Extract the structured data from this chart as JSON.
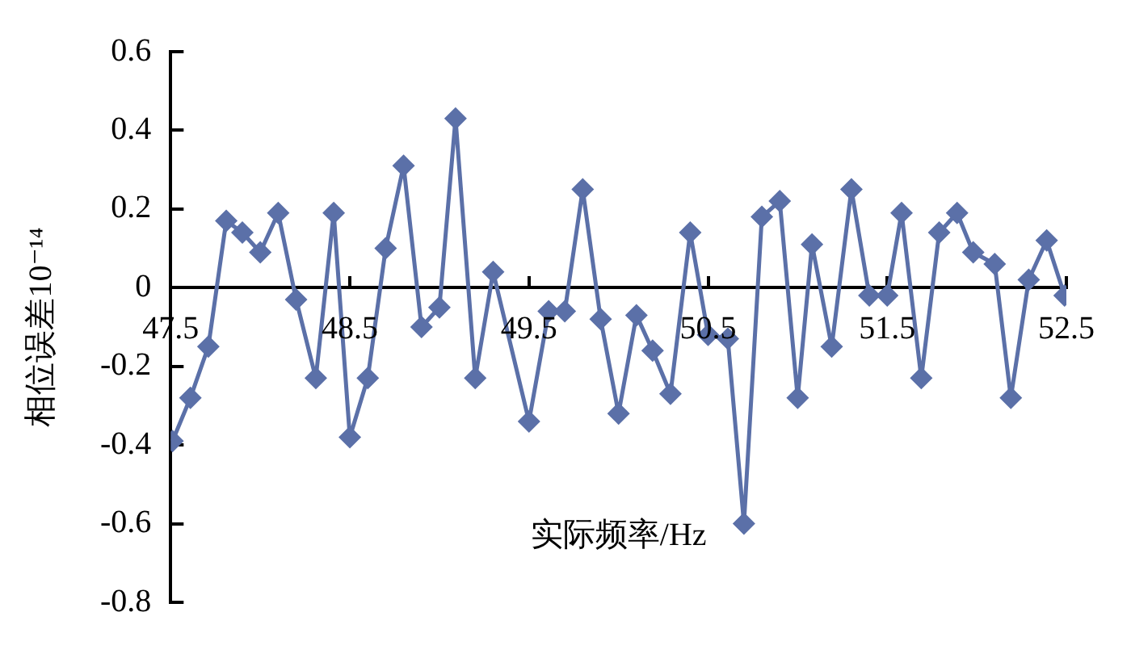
{
  "chart_data": {
    "type": "line",
    "xlabel": "实际频率/Hz",
    "ylabel": "相位误差10⁻¹⁴",
    "x": [
      47.51,
      47.61,
      47.71,
      47.81,
      47.9,
      48.0,
      48.1,
      48.2,
      48.31,
      48.41,
      48.5,
      48.6,
      48.7,
      48.8,
      48.9,
      49.0,
      49.09,
      49.2,
      49.3,
      49.5,
      49.61,
      49.7,
      49.8,
      49.9,
      50.0,
      50.1,
      50.19,
      50.29,
      50.4,
      50.5,
      50.61,
      50.7,
      50.8,
      50.9,
      51.0,
      51.08,
      51.19,
      51.3,
      51.4,
      51.5,
      51.58,
      51.69,
      51.79,
      51.89,
      51.98,
      52.1,
      52.19,
      52.29,
      52.39,
      52.49
    ],
    "series": [
      {
        "color": "#5b70a8",
        "values": [
          -0.39,
          -0.28,
          -0.15,
          0.17,
          0.14,
          0.09,
          0.19,
          -0.03,
          -0.23,
          0.19,
          -0.38,
          -0.23,
          0.1,
          0.31,
          -0.1,
          -0.05,
          0.43,
          -0.23,
          0.04,
          -0.34,
          -0.06,
          -0.06,
          0.25,
          -0.08,
          -0.32,
          -0.07,
          -0.16,
          -0.27,
          0.14,
          -0.12,
          -0.13,
          -0.6,
          0.18,
          0.22,
          -0.28,
          0.11,
          -0.15,
          0.25,
          -0.02,
          -0.02,
          0.19,
          -0.23,
          0.14,
          0.19,
          0.09,
          0.06,
          -0.28,
          0.02,
          0.12,
          -0.02
        ]
      }
    ],
    "xlim": [
      47.5,
      52.5
    ],
    "xticks": [
      47.5,
      48.5,
      49.5,
      50.5,
      51.5,
      52.5
    ],
    "ylim": [
      -0.8,
      0.6
    ],
    "yticks": [
      -0.8,
      -0.6,
      -0.4,
      -0.2,
      0,
      0.2,
      0.4,
      0.6
    ],
    "grid": false,
    "legend": false,
    "marker": "diamond",
    "line_style": "solid"
  }
}
